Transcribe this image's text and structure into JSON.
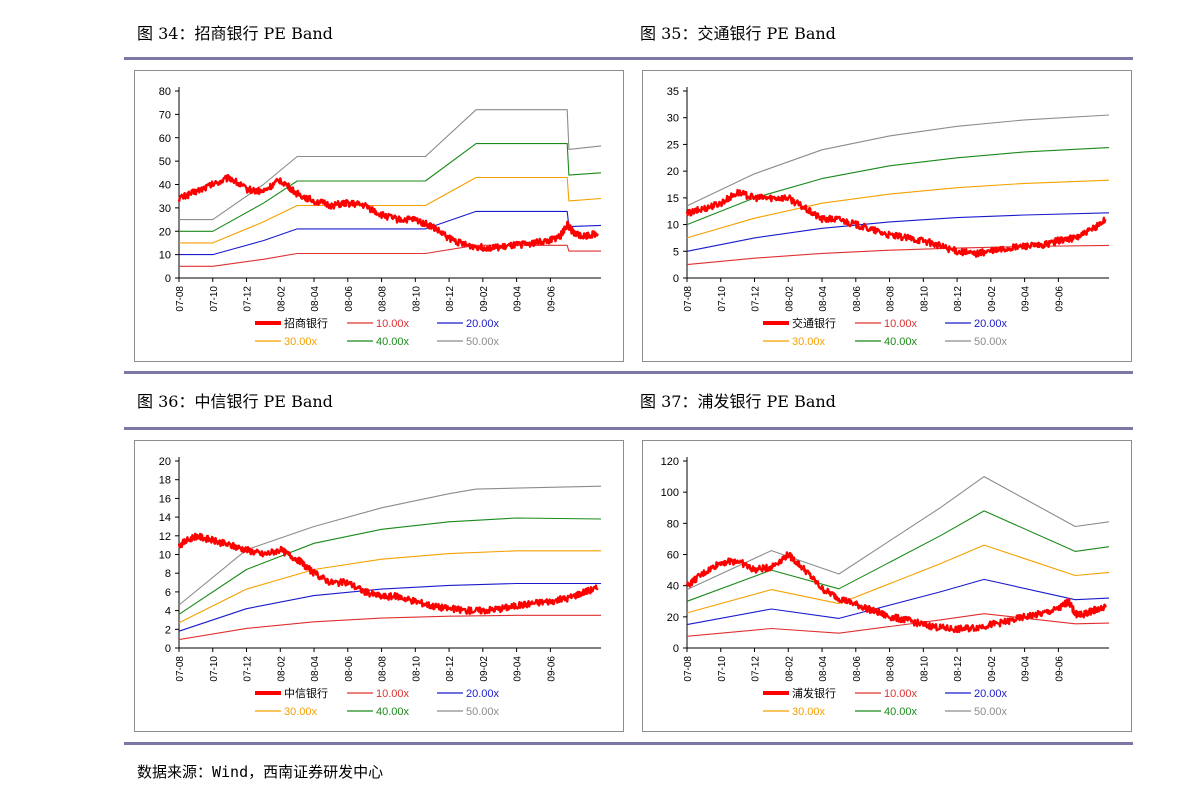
{
  "figure_titles": [
    "图 34：招商银行 PE Band",
    "图 35：交通银行 PE Band",
    "图 36：中信银行 PE Band",
    "图 37：浦发银行 PE Band"
  ],
  "source_note": "数据来源：Wind，西南证券研发中心",
  "colors": {
    "price": "#ff0000",
    "pe10": "#e03030",
    "pe20": "#1a1acc",
    "pe30": "#f5a000",
    "pe40": "#1a8a1a",
    "pe50": "#8c8c8c",
    "rule": "#7b78a6"
  },
  "chart_data": [
    {
      "type": "line",
      "title": "图 34：招商银行 PE Band",
      "xlabel": "",
      "ylabel": "",
      "x_ticks": [
        "07-08",
        "07-10",
        "07-12",
        "08-02",
        "08-04",
        "08-06",
        "08-08",
        "08-10",
        "08-12",
        "09-02",
        "09-04",
        "09-06"
      ],
      "yticks": [
        0,
        10,
        20,
        30,
        40,
        50,
        60,
        70,
        80
      ],
      "ylim": [
        0,
        80
      ],
      "xlim": [
        0,
        12.5
      ],
      "grid": false,
      "legend": "bottom",
      "series": [
        {
          "name": "招商银行",
          "x": [
            0,
            0.5,
            1,
            1.5,
            2,
            2.5,
            3,
            3.5,
            4,
            4.5,
            5,
            5.5,
            6,
            6.5,
            7,
            7.5,
            8,
            8.5,
            9,
            9.5,
            10,
            10.5,
            11,
            11.3,
            11.5,
            11.7,
            12,
            12.4
          ],
          "values": [
            34,
            37,
            40,
            43,
            38,
            37,
            42,
            36,
            33,
            31,
            32,
            31,
            27,
            25,
            25,
            22,
            17,
            14,
            13,
            13,
            14,
            15,
            16,
            18,
            23,
            19,
            18,
            19
          ]
        },
        {
          "name": "10.00x",
          "x": [
            0,
            1,
            2.5,
            3.5,
            5,
            7,
            7.3,
            8.8,
            11.5,
            11.55,
            12.5
          ],
          "values": [
            5,
            5,
            8,
            10.5,
            10.5,
            10.5,
            10.5,
            14,
            14,
            11.5,
            11.5
          ]
        },
        {
          "name": "20.00x",
          "x": [
            0,
            1,
            2.5,
            3.5,
            5,
            7,
            7.3,
            8.8,
            11.5,
            11.55,
            12.5
          ],
          "values": [
            10,
            10,
            16,
            21,
            21,
            21,
            21,
            28.5,
            28.5,
            22,
            22.5
          ]
        },
        {
          "name": "30.00x",
          "x": [
            0,
            1,
            2.5,
            3.5,
            5,
            7,
            7.3,
            8.8,
            11.5,
            11.55,
            12.5
          ],
          "values": [
            15,
            15,
            24,
            31,
            31,
            31,
            31,
            43,
            43,
            33,
            34
          ]
        },
        {
          "name": "40.00x",
          "x": [
            0,
            1,
            2.5,
            3.5,
            5,
            7,
            7.3,
            8.8,
            11.5,
            11.55,
            12.5
          ],
          "values": [
            20,
            20,
            32,
            41.5,
            41.5,
            41.5,
            41.5,
            57.5,
            57.5,
            44,
            45
          ]
        },
        {
          "name": "50.00x",
          "x": [
            0,
            1,
            2.5,
            3.5,
            5,
            7,
            7.3,
            8.8,
            11.5,
            11.55,
            12.5
          ],
          "values": [
            25,
            25,
            40,
            52,
            52,
            52,
            52,
            72,
            72,
            55,
            56.5
          ]
        }
      ]
    },
    {
      "type": "line",
      "title": "图 35：交通银行 PE Band",
      "xlabel": "",
      "ylabel": "",
      "x_ticks": [
        "07-08",
        "07-10",
        "07-12",
        "08-02",
        "08-04",
        "08-06",
        "08-08",
        "08-10",
        "08-12",
        "09-02",
        "09-04",
        "09-06"
      ],
      "yticks": [
        0,
        5,
        10,
        15,
        20,
        25,
        30,
        35
      ],
      "ylim": [
        0,
        35
      ],
      "xlim": [
        0,
        12.5
      ],
      "grid": false,
      "legend": "bottom",
      "series": [
        {
          "name": "交通银行",
          "x": [
            0,
            0.5,
            1,
            1.5,
            2,
            2.5,
            3,
            3.5,
            4,
            4.5,
            5,
            5.5,
            6,
            6.5,
            7,
            7.5,
            8,
            8.5,
            9,
            9.5,
            10,
            10.5,
            11,
            11.5,
            12,
            12.4
          ],
          "values": [
            12,
            13,
            14,
            16,
            15,
            15,
            15,
            13,
            11,
            11,
            10,
            9,
            8,
            7.5,
            7,
            6,
            5,
            4.5,
            5,
            5.5,
            6,
            6,
            7,
            7.5,
            9,
            11
          ]
        },
        {
          "name": "10.00x",
          "x": [
            0,
            2,
            4,
            6,
            8,
            10,
            12.5
          ],
          "values": [
            2.5,
            3.7,
            4.6,
            5.2,
            5.6,
            5.9,
            6.1
          ]
        },
        {
          "name": "20.00x",
          "x": [
            0,
            2,
            4,
            6,
            8,
            10,
            12.5
          ],
          "values": [
            5,
            7.5,
            9.3,
            10.5,
            11.3,
            11.8,
            12.2
          ]
        },
        {
          "name": "30.00x",
          "x": [
            0,
            2,
            4,
            6,
            8,
            10,
            12.5
          ],
          "values": [
            7.5,
            11.2,
            14,
            15.7,
            16.9,
            17.7,
            18.3
          ]
        },
        {
          "name": "40.00x",
          "x": [
            0,
            2,
            4,
            6,
            8,
            10,
            12.5
          ],
          "values": [
            10,
            15,
            18.6,
            21,
            22.5,
            23.6,
            24.4
          ]
        },
        {
          "name": "50.00x",
          "x": [
            0,
            2,
            4,
            6,
            8,
            10,
            12.5
          ],
          "values": [
            13.5,
            19.5,
            24,
            26.6,
            28.4,
            29.6,
            30.5
          ]
        }
      ]
    },
    {
      "type": "line",
      "title": "图 36：中信银行 PE Band",
      "xlabel": "",
      "ylabel": "",
      "x_ticks": [
        "07-08",
        "07-10",
        "07-12",
        "08-02",
        "08-04",
        "08-06",
        "08-08",
        "08-10",
        "08-12",
        "09-02",
        "09-04",
        "09-06"
      ],
      "yticks": [
        0,
        2,
        4,
        6,
        8,
        10,
        12,
        14,
        16,
        18,
        20
      ],
      "ylim": [
        0,
        20
      ],
      "xlim": [
        0,
        12.5
      ],
      "grid": false,
      "legend": "bottom",
      "series": [
        {
          "name": "中信银行",
          "x": [
            0,
            0.5,
            1,
            1.5,
            2,
            2.5,
            3,
            3.5,
            4,
            4.5,
            5,
            5.5,
            6,
            6.5,
            7,
            7.5,
            8,
            8.5,
            9,
            9.5,
            10,
            10.5,
            11,
            11.5,
            12,
            12.4
          ],
          "values": [
            11,
            12,
            11.5,
            11,
            10.5,
            10,
            10.5,
            9.5,
            8,
            7,
            7,
            6,
            5.5,
            5.5,
            5,
            4.5,
            4.2,
            4,
            4,
            4.2,
            4.5,
            4.8,
            5,
            5.3,
            6,
            6.4
          ]
        },
        {
          "name": "10.00x",
          "x": [
            0,
            2,
            4,
            6,
            8,
            10,
            12.5
          ],
          "values": [
            0.9,
            2.1,
            2.8,
            3.2,
            3.4,
            3.5,
            3.5
          ]
        },
        {
          "name": "20.00x",
          "x": [
            0,
            2,
            4,
            6,
            8,
            10,
            12.5
          ],
          "values": [
            1.8,
            4.2,
            5.6,
            6.3,
            6.7,
            6.9,
            6.9
          ]
        },
        {
          "name": "30.00x",
          "x": [
            0,
            2,
            4,
            6,
            8,
            10,
            12.5
          ],
          "values": [
            2.7,
            6.3,
            8.4,
            9.5,
            10.1,
            10.4,
            10.4
          ]
        },
        {
          "name": "40.00x",
          "x": [
            0,
            2,
            4,
            6,
            8,
            10,
            12.5
          ],
          "values": [
            3.6,
            8.4,
            11.2,
            12.7,
            13.5,
            13.9,
            13.8
          ]
        },
        {
          "name": "50.00x",
          "x": [
            0,
            2,
            4,
            6,
            8,
            8.8,
            10,
            12.5
          ],
          "values": [
            4.6,
            10.5,
            13,
            15,
            16.5,
            17,
            17.1,
            17.3
          ]
        }
      ]
    },
    {
      "type": "line",
      "title": "图 37：浦发银行 PE Band",
      "xlabel": "",
      "ylabel": "",
      "x_ticks": [
        "07-08",
        "07-10",
        "07-12",
        "08-02",
        "08-04",
        "08-06",
        "08-08",
        "08-10",
        "08-12",
        "09-02",
        "09-04",
        "09-06"
      ],
      "yticks": [
        0,
        20,
        40,
        60,
        80,
        100,
        120
      ],
      "ylim": [
        0,
        120
      ],
      "xlim": [
        0,
        12.5
      ],
      "grid": false,
      "legend": "bottom",
      "series": [
        {
          "name": "浦发银行",
          "x": [
            0,
            0.5,
            1,
            1.5,
            2,
            2.5,
            3,
            3.5,
            4,
            4.5,
            5,
            5.5,
            6,
            6.5,
            7,
            7.5,
            8,
            8.5,
            9,
            9.5,
            10,
            10.5,
            11,
            11.3,
            11.5,
            11.7,
            12,
            12.4
          ],
          "values": [
            40,
            48,
            55,
            56,
            50,
            52,
            60,
            50,
            38,
            32,
            28,
            24,
            20,
            18,
            15,
            13,
            12,
            13,
            15,
            17,
            20,
            22,
            25,
            30,
            22,
            21,
            24,
            26
          ]
        },
        {
          "name": "10.00x",
          "x": [
            0,
            2.5,
            4.5,
            7.5,
            8.8,
            11.5,
            12.5
          ],
          "values": [
            7.5,
            12.5,
            9.5,
            18,
            22,
            15.5,
            16
          ]
        },
        {
          "name": "20.00x",
          "x": [
            0,
            2.5,
            4.5,
            7.5,
            8.8,
            11.5,
            12.5
          ],
          "values": [
            15,
            25,
            19,
            36,
            44,
            31,
            32
          ]
        },
        {
          "name": "30.00x",
          "x": [
            0,
            2.5,
            4.5,
            7.5,
            8.8,
            11.5,
            12.5
          ],
          "values": [
            22.5,
            37.5,
            28.5,
            54,
            66,
            46.5,
            48.5
          ]
        },
        {
          "name": "40.00x",
          "x": [
            0,
            2.5,
            4.5,
            7.5,
            8.8,
            11.5,
            12.5
          ],
          "values": [
            30,
            50,
            38,
            72,
            88,
            62,
            65
          ]
        },
        {
          "name": "50.00x",
          "x": [
            0,
            2.5,
            4.5,
            7.5,
            8.8,
            11.5,
            12.5
          ],
          "values": [
            37.5,
            62.5,
            47.5,
            90,
            110,
            78,
            81
          ]
        }
      ]
    }
  ]
}
